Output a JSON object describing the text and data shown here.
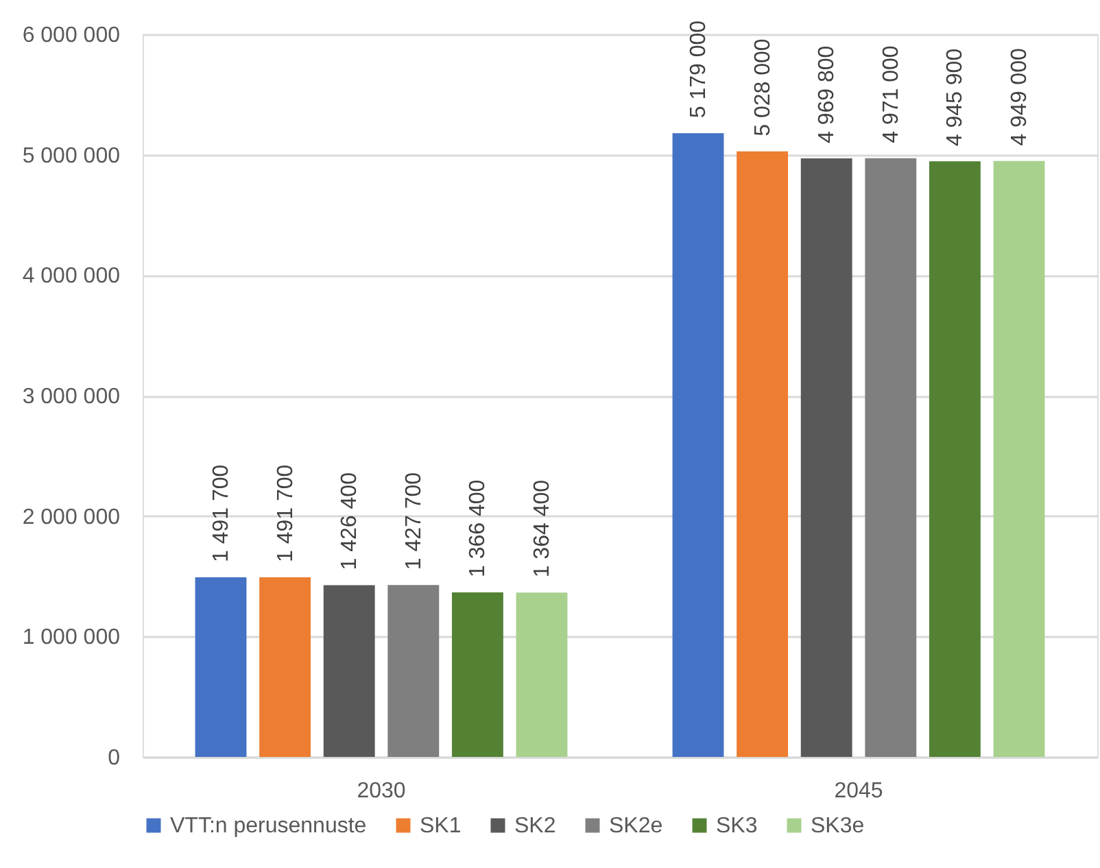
{
  "chart_data": {
    "type": "bar",
    "categories": [
      "2030",
      "2045"
    ],
    "series": [
      {
        "name": "VTT:n perusennuste",
        "color": "#4472c4",
        "values": [
          1491700,
          5179000
        ],
        "value_labels": [
          "1 491 700",
          "5 179 000"
        ]
      },
      {
        "name": "SK1",
        "color": "#ed7d31",
        "values": [
          1491700,
          5028000
        ],
        "value_labels": [
          "1 491 700",
          "5 028 000"
        ]
      },
      {
        "name": "SK2",
        "color": "#595959",
        "values": [
          1426400,
          4969800
        ],
        "value_labels": [
          "1 426 400",
          "4 969 800"
        ]
      },
      {
        "name": "SK2e",
        "color": "#7f7f7f",
        "values": [
          1427700,
          4971000
        ],
        "value_labels": [
          "1 427 700",
          "4 971 000"
        ]
      },
      {
        "name": "SK3",
        "color": "#548235",
        "values": [
          1366400,
          4945900
        ],
        "value_labels": [
          "1 366 400",
          "4 945 900"
        ]
      },
      {
        "name": "SK3e",
        "color": "#a9d18e",
        "values": [
          1364400,
          4949000
        ],
        "value_labels": [
          "1 364 400",
          "4 949 000"
        ]
      }
    ],
    "ylim": [
      0,
      6000000
    ],
    "yticks": [
      0,
      {
        "value": 1000000,
        "label": "1 000 000"
      },
      {
        "value": 2000000,
        "label": "2 000 000"
      },
      {
        "value": 3000000,
        "label": "3 000 000"
      },
      {
        "value": 4000000,
        "label": "4 000 000"
      },
      {
        "value": 5000000,
        "label": "5 000 000"
      },
      {
        "value": 6000000,
        "label": "6 000 000"
      }
    ],
    "grid": "y",
    "legend": "bottom"
  }
}
